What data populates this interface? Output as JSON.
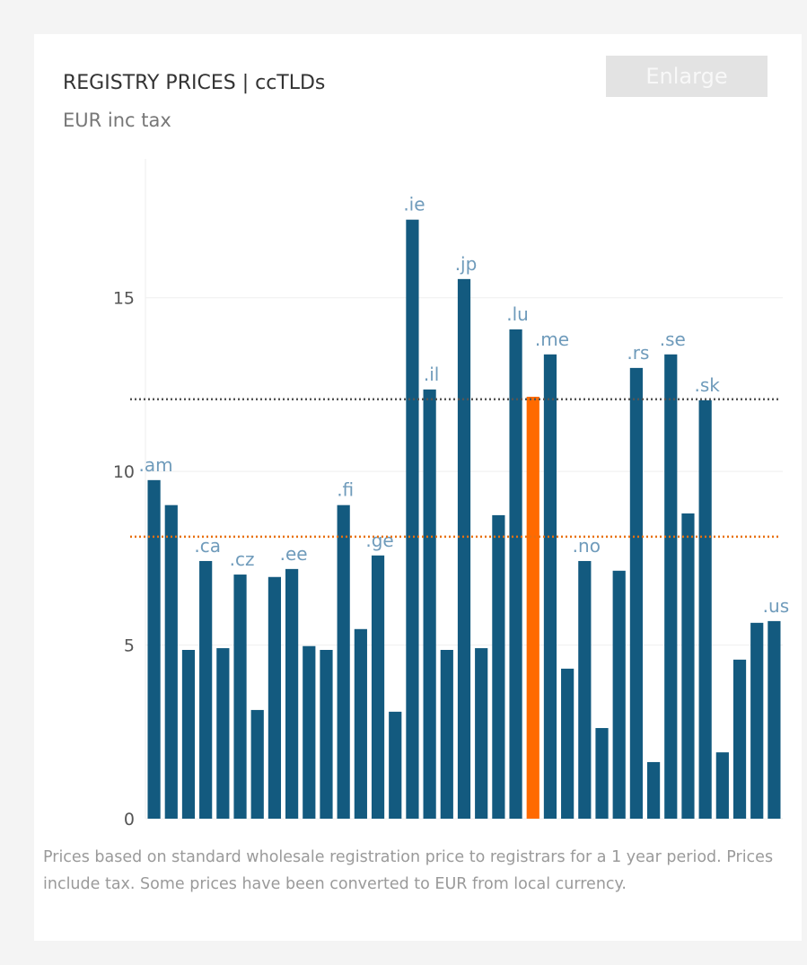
{
  "ui": {
    "button": "Enlarge"
  },
  "chart_data": {
    "type": "bar",
    "title": "REGISTRY PRICES | ccTLDs",
    "subtitle": "EUR inc tax",
    "note": "Prices based on standard wholesale registration price to registrars for a 1 year period.  Prices include tax.  Some prices have been converted to EUR from local currency.",
    "categories": [
      ".am",
      null,
      null,
      ".ca",
      null,
      ".cz",
      null,
      null,
      ".ee",
      null,
      null,
      ".fi",
      null,
      ".ge",
      null,
      ".ie",
      ".il",
      null,
      ".jp",
      null,
      null,
      ".lu",
      null,
      ".me",
      null,
      ".no",
      null,
      null,
      ".rs",
      null,
      ".se",
      null,
      ".sk",
      null,
      null,
      null,
      ".us"
    ],
    "values": [
      9.75,
      9.03,
      4.86,
      7.42,
      4.91,
      7.03,
      3.13,
      6.96,
      7.19,
      4.97,
      4.86,
      9.03,
      5.46,
      7.58,
      3.08,
      17.25,
      12.36,
      4.86,
      15.54,
      4.91,
      8.74,
      14.09,
      12.15,
      13.37,
      4.32,
      7.42,
      2.61,
      7.14,
      12.98,
      1.63,
      13.37,
      8.79,
      12.05,
      1.91,
      4.58,
      5.64,
      5.69
    ],
    "colors": [
      "#135a7f",
      "#135a7f",
      "#135a7f",
      "#135a7f",
      "#135a7f",
      "#135a7f",
      "#135a7f",
      "#135a7f",
      "#135a7f",
      "#135a7f",
      "#135a7f",
      "#135a7f",
      "#135a7f",
      "#135a7f",
      "#135a7f",
      "#135a7f",
      "#135a7f",
      "#135a7f",
      "#135a7f",
      "#135a7f",
      "#135a7f",
      "#135a7f",
      "#ff6a00",
      "#135a7f",
      "#135a7f",
      "#135a7f",
      "#135a7f",
      "#135a7f",
      "#135a7f",
      "#135a7f",
      "#135a7f",
      "#135a7f",
      "#135a7f",
      "#135a7f",
      "#135a7f",
      "#135a7f",
      "#135a7f"
    ],
    "label_color": "#6f9bbb",
    "reference_lines": [
      {
        "value": 12.08,
        "color": "#555555"
      },
      {
        "value": 8.12,
        "color": "#e8700f"
      }
    ],
    "ylim": [
      0,
      19
    ],
    "yticks": [
      0,
      5,
      10,
      15
    ],
    "grid": true
  }
}
